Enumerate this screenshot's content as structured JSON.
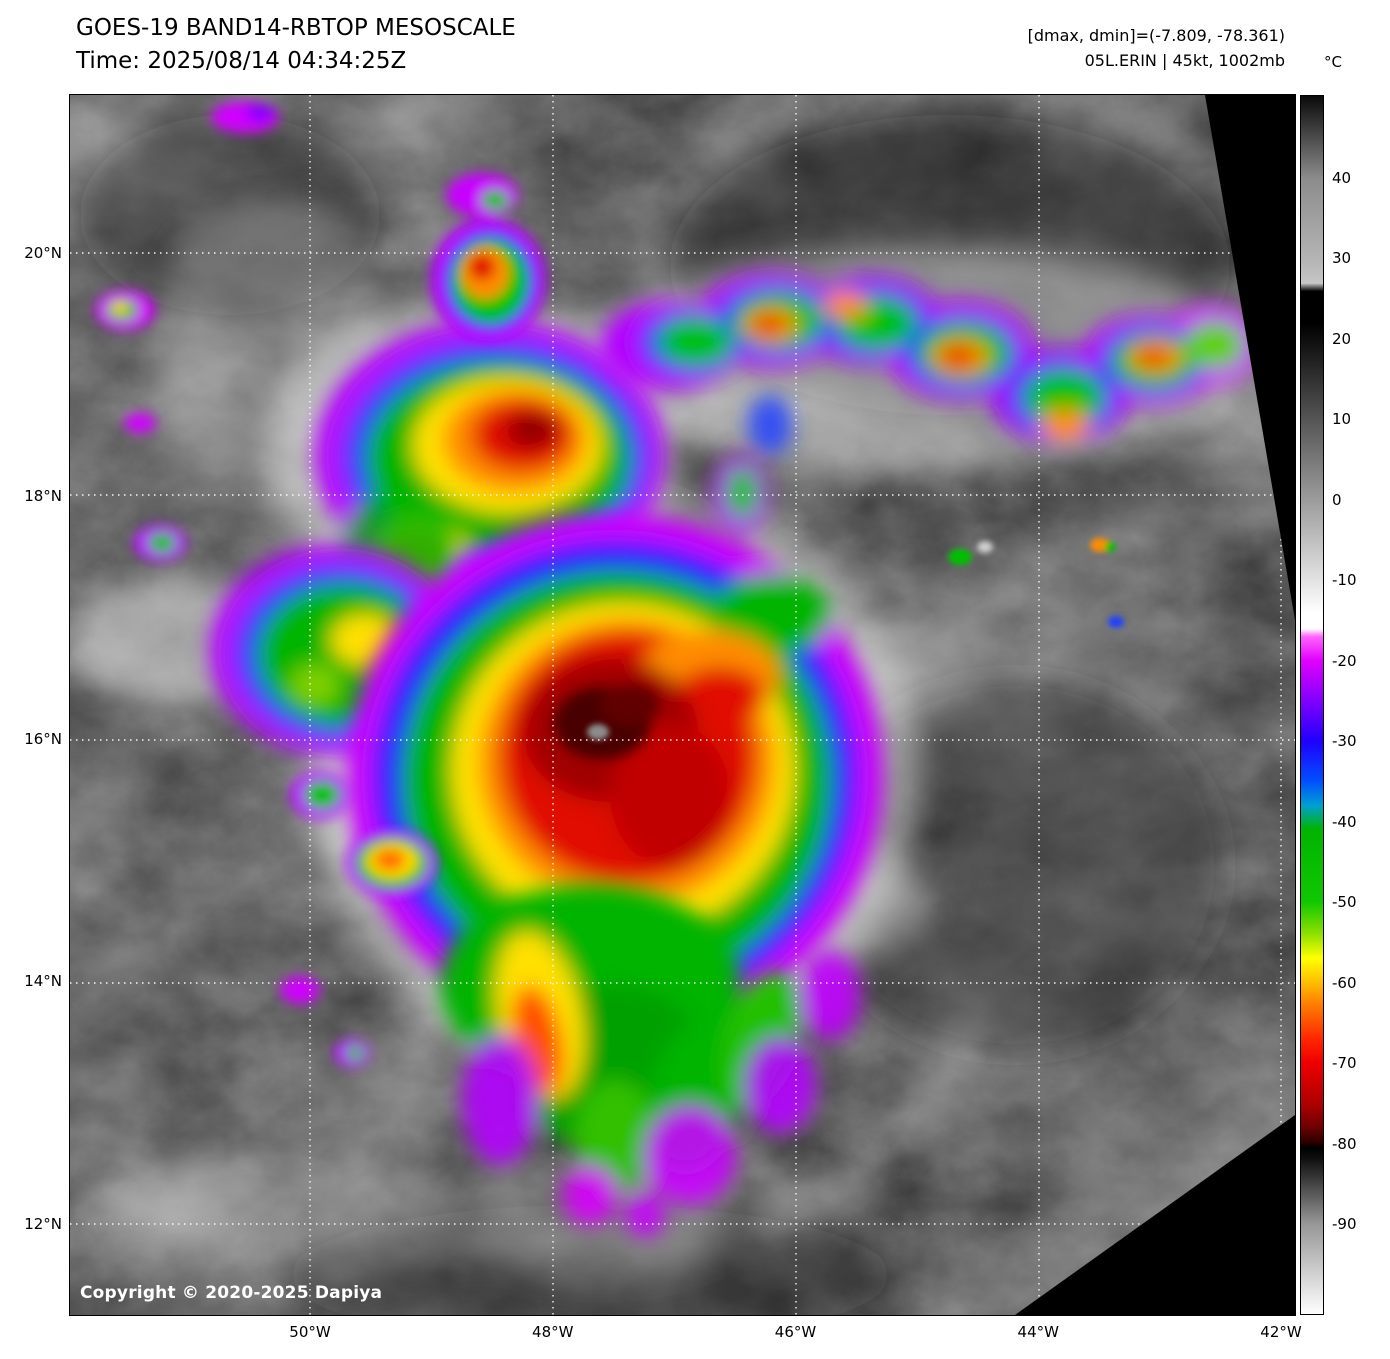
{
  "header": {
    "title": "GOES-19 BAND14-RBTOP MESOSCALE",
    "time": "Time: 2025/08/14 04:34:25Z",
    "dmax_dmin": "[dmax, dmin]=(-7.809, -78.361)",
    "storm_info": "05L.ERIN | 45kt, 1002mb"
  },
  "colorbar": {
    "unit": "°C",
    "ticks": [
      "40",
      "30",
      "20",
      "10",
      "0",
      "-10",
      "-20",
      "-30",
      "-40",
      "-50",
      "-60",
      "-70",
      "-80",
      "-90"
    ],
    "scale_top_c": 50.3,
    "scale_bottom_c": -101.3,
    "gradient": [
      {
        "t": 50.3,
        "color": "#0a0a0a"
      },
      {
        "t": 40,
        "color": "#8c8c8c"
      },
      {
        "t": 30,
        "color": "#b4b4b4"
      },
      {
        "t": 27,
        "color": "#c6c6c6"
      },
      {
        "t": 26,
        "color": "#000000"
      },
      {
        "t": 22,
        "color": "#000000"
      },
      {
        "t": -14,
        "color": "#ffffff"
      },
      {
        "t": -16,
        "color": "#ffffff"
      },
      {
        "t": -17,
        "color": "#ff64ff"
      },
      {
        "t": -20,
        "color": "#e000ff"
      },
      {
        "t": -25,
        "color": "#8000ff"
      },
      {
        "t": -30,
        "color": "#2000ff"
      },
      {
        "t": -35,
        "color": "#0050ff"
      },
      {
        "t": -38,
        "color": "#00a0d0"
      },
      {
        "t": -41,
        "color": "#00b400"
      },
      {
        "t": -50,
        "color": "#10c800"
      },
      {
        "t": -54,
        "color": "#90e000"
      },
      {
        "t": -57,
        "color": "#ffff00"
      },
      {
        "t": -60,
        "color": "#ffbe00"
      },
      {
        "t": -63,
        "color": "#ff7800"
      },
      {
        "t": -67,
        "color": "#ff2800"
      },
      {
        "t": -70,
        "color": "#ee0000"
      },
      {
        "t": -75,
        "color": "#b00000"
      },
      {
        "t": -78,
        "color": "#700000"
      },
      {
        "t": -80,
        "color": "#280000"
      },
      {
        "t": -80.6,
        "color": "#000000"
      },
      {
        "t": -82,
        "color": "#101010"
      },
      {
        "t": -90,
        "color": "#969696"
      },
      {
        "t": -101.3,
        "color": "#ffffff"
      }
    ]
  },
  "map": {
    "lat_labels": [
      "20°N",
      "18°N",
      "16°N",
      "14°N",
      "12°N"
    ],
    "lon_labels": [
      "50°W",
      "48°W",
      "46°W",
      "44°W",
      "42°W"
    ],
    "copyright": "Copyright © 2020-2025 Dapiya"
  }
}
